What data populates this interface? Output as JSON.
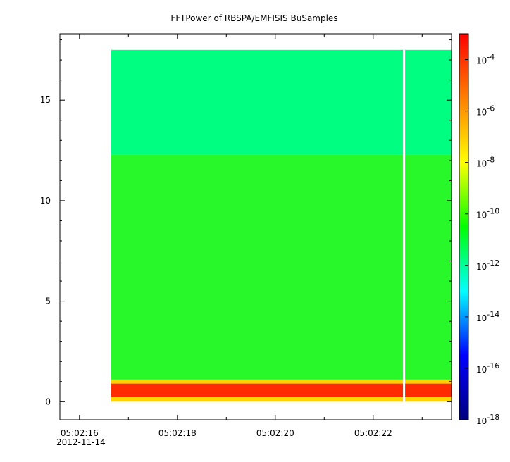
{
  "chart_data": {
    "type": "heatmap",
    "title": "FFTPower of RBSPA/EMFISIS  BuSamples",
    "x_tick_labels": [
      "05:02:16",
      "05:02:18",
      "05:02:20",
      "05:02:22"
    ],
    "x_date_label": "2012-11-14",
    "x_range_seconds": [
      15.6,
      23.6
    ],
    "x_major_tick_seconds": [
      16,
      18,
      20,
      22
    ],
    "x_minor_tick_seconds": [
      17,
      19,
      21,
      23
    ],
    "y_tick_labels": [
      "0",
      "5",
      "10",
      "15"
    ],
    "y_tick_values": [
      0,
      5,
      10,
      15
    ],
    "ylim": [
      -0.9,
      18.3
    ],
    "data_x_range_seconds": [
      16.65,
      23.6
    ],
    "data_y_range": [
      0,
      17.5
    ],
    "gap_seconds": 22.63,
    "color_scale": "log",
    "color_range": [
      1e-18,
      0.001
    ],
    "colorbar_tick_labels": [
      "10-4",
      "10-6",
      "10-8",
      "10-10",
      "10-12",
      "10-14",
      "10-16",
      "10-18"
    ],
    "colorbar_tick_values": [
      -4,
      -6,
      -8,
      -10,
      -12,
      -14,
      -16,
      -18
    ],
    "bands": [
      {
        "y_from": 12.3,
        "y_to": 17.5,
        "color": "#00ff80"
      },
      {
        "y_from": 1.1,
        "y_to": 12.3,
        "color": "#28f82a"
      },
      {
        "y_from": 0.9,
        "y_to": 1.1,
        "color": "#ffd000"
      },
      {
        "y_from": 0.25,
        "y_to": 0.9,
        "color": "#ff2a00"
      },
      {
        "y_from": 0.0,
        "y_to": 0.25,
        "color": "#ffd400"
      }
    ],
    "colorbar_colors": [
      "#ff0000",
      "#ff7f00",
      "#ffff00",
      "#00ff00",
      "#00ffff",
      "#0000ff",
      "#00007f"
    ]
  }
}
